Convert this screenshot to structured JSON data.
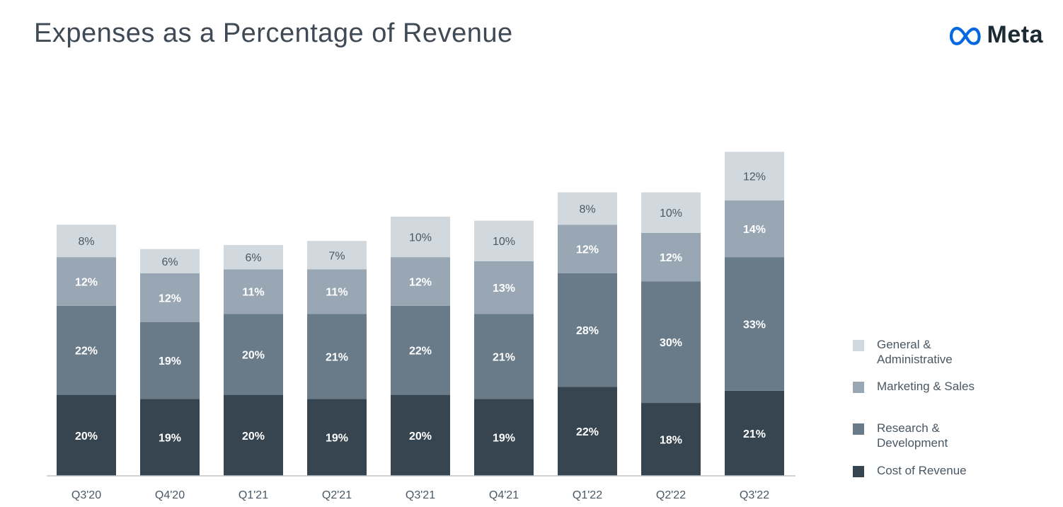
{
  "header": {
    "title": "Expenses as a Percentage of Revenue",
    "logo_text": "Meta"
  },
  "colors": {
    "cost_of_revenue": "#36454f",
    "research_development": "#697a89",
    "marketing_sales": "#98a7b3",
    "general_administrative": "#d2d9de",
    "baseline": "#bfc6cc",
    "label_dark_text": "#ffffff",
    "label_light_text": "#4a5763"
  },
  "legend": [
    {
      "key": "general_administrative",
      "label": "General & Administrative"
    },
    {
      "key": "marketing_sales",
      "label": "Marketing & Sales"
    },
    {
      "key": "research_development",
      "label": "Research & Development"
    },
    {
      "key": "cost_of_revenue",
      "label": "Cost of Revenue"
    }
  ],
  "chart_data": {
    "type": "bar",
    "stacked": true,
    "title": "Expenses as a Percentage of Revenue",
    "categories": [
      "Q3'20",
      "Q4'20",
      "Q1'21",
      "Q2'21",
      "Q3'21",
      "Q4'21",
      "Q1'22",
      "Q2'22",
      "Q3'22"
    ],
    "series": [
      {
        "name": "Cost of Revenue",
        "key": "cost_of_revenue",
        "values": [
          20,
          19,
          20,
          19,
          20,
          19,
          22,
          18,
          21
        ],
        "labels": [
          "20%",
          "19%",
          "20%",
          "19%",
          "20%",
          "19%",
          "22%",
          "18%",
          "21%"
        ]
      },
      {
        "name": "Research & Development",
        "key": "research_development",
        "values": [
          22,
          19,
          20,
          21,
          22,
          21,
          28,
          30,
          33
        ],
        "labels": [
          "22%",
          "19%",
          "20%",
          "21%",
          "22%",
          "21%",
          "28%",
          "30%",
          "33%"
        ]
      },
      {
        "name": "Marketing & Sales",
        "key": "marketing_sales",
        "values": [
          12,
          12,
          11,
          11,
          12,
          13,
          12,
          12,
          14
        ],
        "labels": [
          "12%",
          "12%",
          "11%",
          "11%",
          "12%",
          "13%",
          "12%",
          "12%",
          "14%"
        ]
      },
      {
        "name": "General & Administrative",
        "key": "general_administrative",
        "values": [
          8,
          6,
          6,
          7,
          10,
          10,
          8,
          10,
          12
        ],
        "labels": [
          "8%",
          "6%",
          "6%",
          "7%",
          "10%",
          "10%",
          "8%",
          "10%",
          "12%"
        ]
      }
    ],
    "ylim": [
      0,
      80
    ],
    "grid": false,
    "legend_position": "right"
  }
}
